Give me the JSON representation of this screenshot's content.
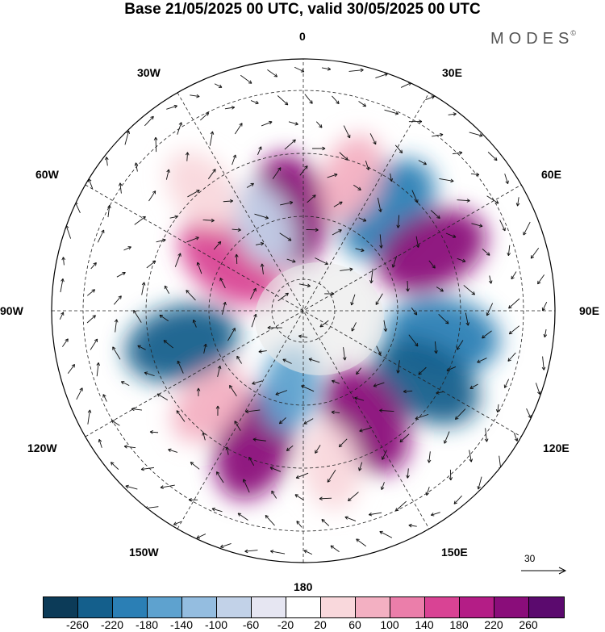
{
  "title": "Base 21/05/2025 00 UTC, valid 30/05/2025 00 UTC",
  "brand": "MODES",
  "brand_mark": "©",
  "longitude_labels": {
    "top": "0",
    "top_right": "30E",
    "upper_right": "60E",
    "right": "90E",
    "lower_right": "120E",
    "bottom_right": "150E",
    "bottom": "180",
    "bottom_left": "150W",
    "lower_left": "120W",
    "left": "90W",
    "upper_left": "60W",
    "top_left": "30W"
  },
  "reference_vector": "30",
  "colorbar": {
    "colors": [
      "#0c3b58",
      "#145f8c",
      "#2b7fb5",
      "#5ea2cf",
      "#94bde0",
      "#c2d2e8",
      "#e6e6f2",
      "#ffffff",
      "#f9d8dc",
      "#f3b0c2",
      "#eb7eaa",
      "#d94394",
      "#b41d86",
      "#8a0d7a",
      "#5b0a6e"
    ],
    "ticks": [
      "-260",
      "-220",
      "-180",
      "-140",
      "-100",
      "-60",
      "-20",
      "20",
      "60",
      "100",
      "140",
      "180",
      "220",
      "260"
    ]
  },
  "anomaly_cells": [
    {
      "lon": 40,
      "lat": -48,
      "value": -210
    },
    {
      "lon": 100,
      "lat": -45,
      "value": -200
    },
    {
      "lon": -55,
      "lat": -62,
      "value": 180
    },
    {
      "lon": -8,
      "lat": -58,
      "value": 240
    },
    {
      "lon": -25,
      "lat": -60,
      "value": -60
    },
    {
      "lon": 20,
      "lat": -45,
      "value": 80
    },
    {
      "lon": 65,
      "lat": -45,
      "value": 250
    },
    {
      "lon": 120,
      "lat": -45,
      "value": -240
    },
    {
      "lon": 150,
      "lat": -50,
      "value": 230
    },
    {
      "lon": -105,
      "lat": -50,
      "value": -220
    },
    {
      "lon": -160,
      "lat": -45,
      "value": 250
    },
    {
      "lon": -135,
      "lat": -48,
      "value": 70
    },
    {
      "lon": 170,
      "lat": -40,
      "value": 50
    },
    {
      "lon": -170,
      "lat": -65,
      "value": -150
    },
    {
      "lon": -40,
      "lat": -40,
      "value": 60
    }
  ]
}
